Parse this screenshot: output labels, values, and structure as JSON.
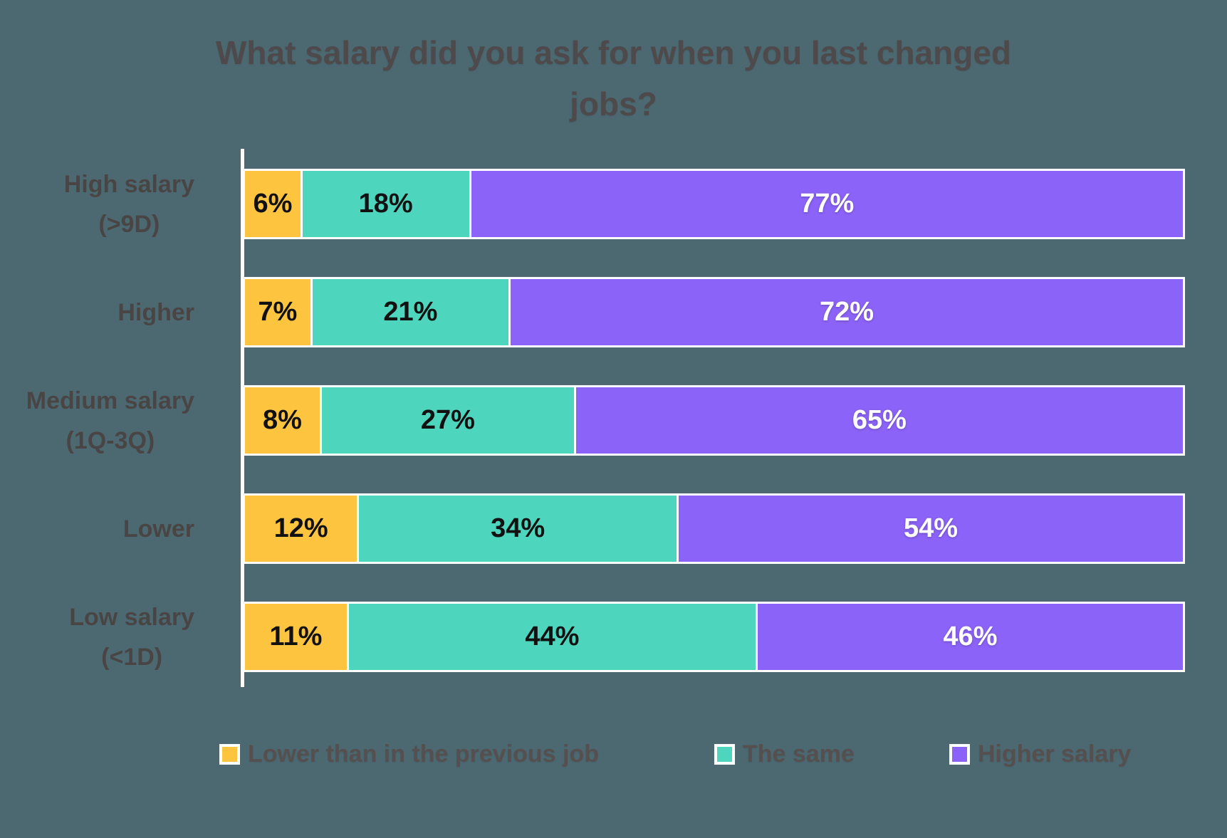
{
  "page": {
    "background_color": "#4C6972"
  },
  "chart_data": {
    "type": "bar",
    "orientation": "horizontal",
    "stacked": true,
    "percent_normalized": true,
    "title": "What salary did you ask for when you last changed jobs?",
    "title_lines": [
      "What salary did you ask for when you last changed",
      "jobs?"
    ],
    "categories": [
      "High salary (>9D)",
      "Higher",
      "Medium salary (1Q-3Q)",
      "Lower",
      "Low salary (<1D)"
    ],
    "category_label_lines": [
      [
        "High salary",
        "(>9D)"
      ],
      [
        "Higher"
      ],
      [
        "Medium salary",
        "(1Q-3Q)"
      ],
      [
        "Lower"
      ],
      [
        "Low salary",
        "(<1D)"
      ]
    ],
    "series": [
      {
        "name": "Lower than in the previous job",
        "color": "#FDC53F",
        "values": [
          6,
          7,
          8,
          12,
          11
        ]
      },
      {
        "name": "The same",
        "color": "#4ED5BD",
        "values": [
          18,
          21,
          27,
          34,
          44
        ]
      },
      {
        "name": "Higher salary",
        "color": "#8B63F8",
        "values": [
          77,
          72,
          65,
          54,
          46
        ]
      }
    ],
    "value_suffix": "%",
    "legend_position": "bottom",
    "axis_color": "#FFFFFF",
    "bar_outline_color": "#FFFFFF",
    "value_text_color_on_light": "#111111",
    "value_text_color_on_dark": "#FFFFFF",
    "title_text_color": "#4E494B",
    "category_text_color": "#4A4545",
    "legend_text_color": "#55504F"
  },
  "legend": {
    "items": [
      {
        "label": "Lower than in the previous job",
        "color": "#FDC53F"
      },
      {
        "label": "The same",
        "color": "#4ED5BD"
      },
      {
        "label": "Higher salary",
        "color": "#8B63F8"
      }
    ]
  }
}
